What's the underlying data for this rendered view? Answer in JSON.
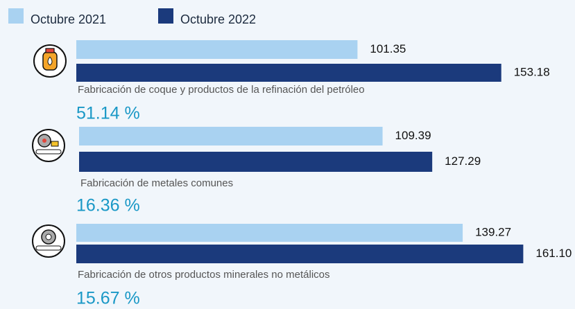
{
  "chart_data": {
    "type": "bar",
    "orientation": "horizontal",
    "categories": [
      "Fabricación de coque y productos de la refinación del petróleo",
      "Fabricación de metales comunes",
      "Fabricación de otros productos minerales no metálicos"
    ],
    "series": [
      {
        "name": "Octubre 2021",
        "color": "#a9d2f1",
        "values": [
          101.35,
          109.39,
          139.27
        ]
      },
      {
        "name": "Octubre 2022",
        "color": "#1b3a7c",
        "values": [
          153.18,
          127.29,
          161.1
        ],
        "value_labels": [
          "153.18",
          "127.29",
          "161.10"
        ]
      }
    ],
    "annotations": [
      "51.14 %",
      "16.36 %",
      "15.67 %"
    ]
  }
}
